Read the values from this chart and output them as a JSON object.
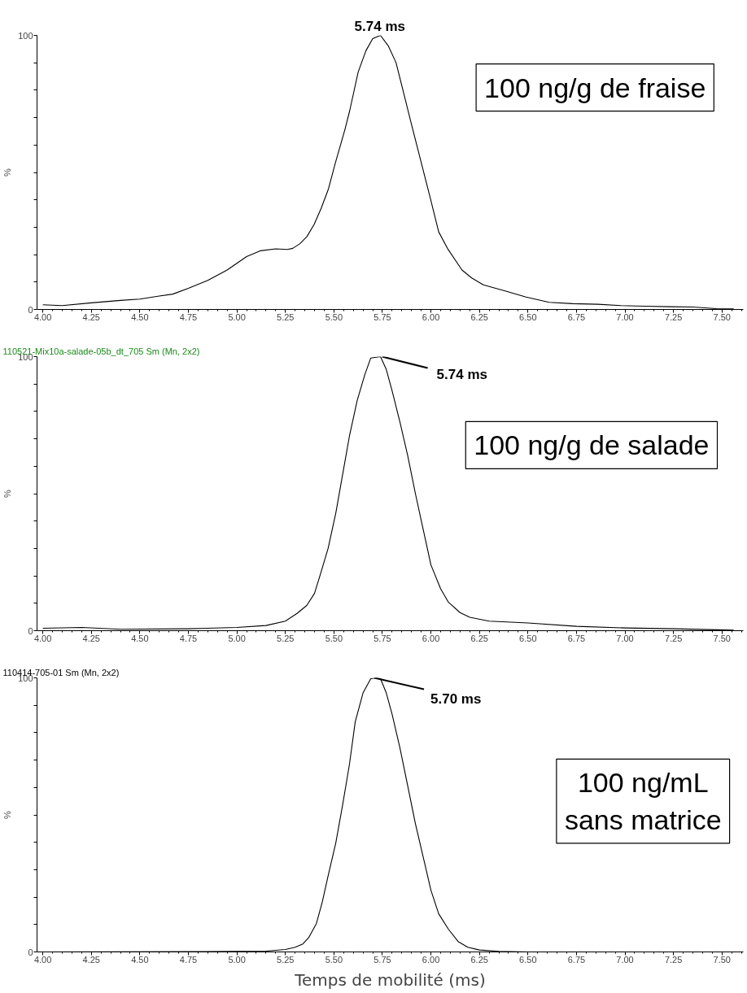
{
  "chart_data": [
    {
      "type": "line",
      "ylabel": "%",
      "xlim": [
        3.97,
        7.61
      ],
      "ylim": [
        0,
        100
      ],
      "grid": false,
      "xticks": [
        {
          "value": 4,
          "label": "4.00"
        },
        {
          "value": 4.25,
          "label": "4.25"
        },
        {
          "value": 4.5,
          "label": "4.50"
        },
        {
          "value": 4.75,
          "label": "4.75"
        },
        {
          "value": 5,
          "label": "5.00"
        },
        {
          "value": 5.25,
          "label": "5.25"
        },
        {
          "value": 5.5,
          "label": "5.50"
        },
        {
          "value": 5.75,
          "label": "5.75"
        },
        {
          "value": 6,
          "label": "6.00"
        },
        {
          "value": 6.25,
          "label": "6.25"
        },
        {
          "value": 6.5,
          "label": "6.50"
        },
        {
          "value": 6.75,
          "label": "6.75"
        },
        {
          "value": 7,
          "label": "7.00"
        },
        {
          "value": 7.25,
          "label": "7.25"
        },
        {
          "value": 7.5,
          "label": "7.50"
        }
      ],
      "yticks": [
        0,
        {
          "value": 10,
          "label": null
        },
        {
          "value": 20,
          "label": null
        },
        {
          "value": 30,
          "label": null
        },
        {
          "value": 40,
          "label": null
        },
        {
          "value": 50,
          "label": null
        },
        {
          "value": 60,
          "label": null
        },
        {
          "value": 70,
          "label": null
        },
        {
          "value": 80,
          "label": null
        },
        {
          "value": 90,
          "label": null
        },
        100
      ],
      "annotations": [
        "5.74 ms",
        "100 ng/g de fraise"
      ],
      "series": [
        {
          "color": "#000000",
          "x": [
            4.0,
            4.1,
            4.25,
            4.4,
            4.5,
            4.6,
            4.67,
            4.75,
            4.85,
            4.95,
            5.05,
            5.12,
            5.2,
            5.26,
            5.288,
            5.325,
            5.361,
            5.398,
            5.435,
            5.472,
            5.508,
            5.557,
            5.582,
            5.625,
            5.665,
            5.7,
            5.74,
            5.78,
            5.82,
            5.86,
            5.9,
            5.95,
            6.0,
            6.04,
            6.085,
            6.16,
            6.21,
            6.27,
            6.39,
            6.49,
            6.61,
            6.73,
            6.86,
            6.98,
            7.1,
            7.23,
            7.35,
            7.47,
            7.56
          ],
          "values": [
            1.7,
            1.4,
            2.4,
            3.3,
            3.8,
            4.9,
            5.6,
            7.7,
            10.6,
            14.4,
            19.3,
            21.4,
            22.1,
            21.9,
            22.3,
            24,
            26.6,
            31,
            37,
            44,
            53.6,
            65.7,
            72.7,
            86.6,
            94.4,
            98.8,
            100,
            96.2,
            90.1,
            78.8,
            67.5,
            53.6,
            39.7,
            28.3,
            22.3,
            14.4,
            11.5,
            9,
            6.6,
            4.5,
            2.6,
            2.1,
            1.9,
            1.4,
            1.2,
            1.0,
            0.9,
            0.3,
            0.2
          ]
        }
      ]
    },
    {
      "type": "line",
      "subtitle": "110521-Mix10a-salade-05b_dt_705 Sm (Mn, 2x2)",
      "ylabel": "%",
      "xlim": [
        3.97,
        7.61
      ],
      "ylim": [
        0,
        100
      ],
      "grid": false,
      "xticks": [
        {
          "value": 4,
          "label": "4.00"
        },
        {
          "value": 4.25,
          "label": "4.25"
        },
        {
          "value": 4.5,
          "label": "4.50"
        },
        {
          "value": 4.75,
          "label": "4.75"
        },
        {
          "value": 5,
          "label": "5.00"
        },
        {
          "value": 5.25,
          "label": "5.25"
        },
        {
          "value": 5.5,
          "label": "5.50"
        },
        {
          "value": 5.75,
          "label": "5.75"
        },
        {
          "value": 6,
          "label": "6.00"
        },
        {
          "value": 6.25,
          "label": "6.25"
        },
        {
          "value": 6.5,
          "label": "6.50"
        },
        {
          "value": 6.75,
          "label": "6.75"
        },
        {
          "value": 7,
          "label": "7.00"
        },
        {
          "value": 7.25,
          "label": "7.25"
        },
        {
          "value": 7.5,
          "label": "7.50"
        }
      ],
      "yticks": [
        0,
        {
          "value": 10,
          "label": null
        },
        {
          "value": 20,
          "label": null
        },
        {
          "value": 30,
          "label": null
        },
        {
          "value": 40,
          "label": null
        },
        {
          "value": 50,
          "label": null
        },
        {
          "value": 60,
          "label": null
        },
        {
          "value": 70,
          "label": null
        },
        {
          "value": 80,
          "label": null
        },
        {
          "value": 90,
          "label": null
        },
        100
      ],
      "annotations": [
        {
          "text": "5.74 ms",
          "x": 5.74,
          "y": 100
        },
        "100 ng/g de salade"
      ],
      "series": [
        {
          "color": "#000000",
          "x": [
            4.0,
            4.2,
            4.4,
            4.75,
            5.0,
            5.15,
            5.25,
            5.31,
            5.36,
            5.4,
            5.43,
            5.47,
            5.51,
            5.545,
            5.58,
            5.62,
            5.66,
            5.69,
            5.74,
            5.77,
            5.8,
            5.84,
            5.88,
            5.92,
            5.96,
            6.0,
            6.05,
            6.09,
            6.15,
            6.2,
            6.3,
            6.5,
            6.75,
            7.0,
            7.25,
            7.56
          ],
          "values": [
            0.9,
            1.2,
            0.5,
            0.7,
            1.2,
            1.9,
            3.5,
            6.3,
            9.2,
            13.6,
            20.5,
            30,
            43,
            57,
            71,
            84,
            93.6,
            99.5,
            100,
            95.3,
            87.5,
            76.2,
            64,
            50,
            37,
            24,
            15.3,
            10.4,
            6.6,
            4.9,
            3.5,
            2.8,
            1.6,
            1.0,
            0.7,
            0.2
          ]
        }
      ]
    },
    {
      "type": "line",
      "subtitle": "110414-705-01 Sm (Mn, 2x2)",
      "xlabel": "Temps de mobilité (ms)",
      "ylabel": "%",
      "xlim": [
        3.97,
        7.61
      ],
      "ylim": [
        0,
        100
      ],
      "grid": false,
      "xticks": [
        {
          "value": 4,
          "label": "4.00"
        },
        {
          "value": 4.25,
          "label": "4.25"
        },
        {
          "value": 4.5,
          "label": "4.50"
        },
        {
          "value": 4.75,
          "label": "4.75"
        },
        {
          "value": 5,
          "label": "5.00"
        },
        {
          "value": 5.25,
          "label": "5.25"
        },
        {
          "value": 5.5,
          "label": "5.50"
        },
        {
          "value": 5.75,
          "label": "5.75"
        },
        {
          "value": 6,
          "label": "6.00"
        },
        {
          "value": 6.25,
          "label": "6.25"
        },
        {
          "value": 6.5,
          "label": "6.50"
        },
        {
          "value": 6.75,
          "label": "6.75"
        },
        {
          "value": 7,
          "label": "7.00"
        },
        {
          "value": 7.25,
          "label": "7.25"
        },
        {
          "value": 7.5,
          "label": "7.50"
        }
      ],
      "yticks": [
        0,
        {
          "value": 10,
          "label": null
        },
        {
          "value": 20,
          "label": null
        },
        {
          "value": 30,
          "label": null
        },
        {
          "value": 40,
          "label": null
        },
        {
          "value": 50,
          "label": null
        },
        {
          "value": 60,
          "label": null
        },
        {
          "value": 70,
          "label": null
        },
        {
          "value": 80,
          "label": null
        },
        {
          "value": 90,
          "label": null
        },
        100
      ],
      "annotations": [
        {
          "text": "5.70 ms",
          "x": 5.7,
          "y": 100
        },
        "100 ng/mL\nsans matrice"
      ],
      "series": [
        {
          "color": "#000000",
          "x": [
            4.0,
            5.0,
            5.15,
            5.25,
            5.3,
            5.34,
            5.37,
            5.41,
            5.44,
            5.47,
            5.51,
            5.545,
            5.58,
            5.61,
            5.65,
            5.69,
            5.72,
            5.74,
            5.77,
            5.8,
            5.84,
            5.88,
            5.92,
            5.96,
            6.0,
            6.04,
            6.09,
            6.14,
            6.19,
            6.25,
            6.35,
            6.5,
            7.56
          ],
          "values": [
            0,
            0.2,
            0.3,
            0.9,
            1.7,
            2.9,
            5.2,
            10.4,
            18.2,
            27.7,
            39.9,
            53.7,
            68.4,
            84,
            94.5,
            99.7,
            100,
            99.7,
            94.5,
            86.7,
            74.5,
            60.7,
            46.8,
            34.7,
            22.5,
            13.9,
            8.3,
            3.8,
            1.7,
            0.7,
            0.2,
            0,
            0
          ]
        }
      ]
    }
  ]
}
